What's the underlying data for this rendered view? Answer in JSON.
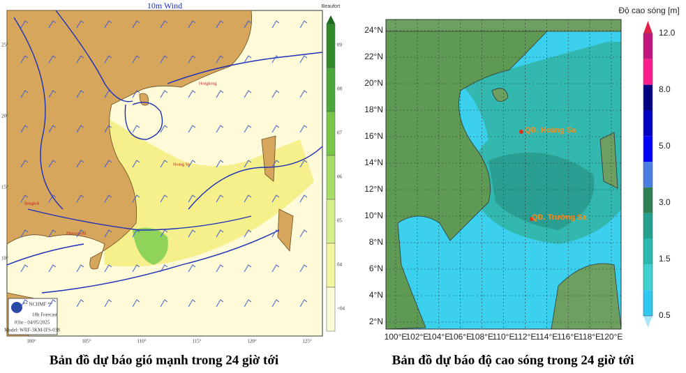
{
  "wind_map": {
    "title": "10m Wind",
    "legend_title": "Beaufort",
    "legend_ticks": [
      "09",
      "08",
      "07",
      "06",
      "05",
      "04",
      "<04"
    ],
    "lon_labels": [
      "100°",
      "105°",
      "110°",
      "115°",
      "120°",
      "125°"
    ],
    "lat_labels": [
      "25°",
      "20°",
      "15°",
      "10°"
    ],
    "places": [
      "Hongkong",
      "Hoang Sa",
      "Bangkok",
      "Phnompenh"
    ],
    "logo": [
      "** NCHMF **",
      "18h Forecast",
      "01hr - 04/05/2025",
      "Model: WRF-3KM-IFS-038"
    ],
    "caption": "Bản đồ dự báo gió mạnh trong 24 giờ tới"
  },
  "wave_map": {
    "legend_title": "Độ cao sóng [m]",
    "legend_ticks": [
      "12.0",
      "8.0",
      "5.0",
      "3.0",
      "1.5",
      "0.5"
    ],
    "lat_labels": [
      "24°N",
      "22°N",
      "20°N",
      "18°N",
      "16°N",
      "14°N",
      "12°N",
      "10°N",
      "8°N",
      "6°N",
      "4°N",
      "2°N"
    ],
    "lon_labels": [
      "100°E",
      "102°E",
      "104°E",
      "106°E",
      "108°E",
      "110°E",
      "112°E",
      "114°E",
      "116°E",
      "118°E",
      "120°E"
    ],
    "islands": [
      "QĐ. Hoàng Sa",
      "QĐ. Trường Sa"
    ],
    "caption": "Bản đồ dự báo độ cao sóng trong 24 giờ tới"
  }
}
